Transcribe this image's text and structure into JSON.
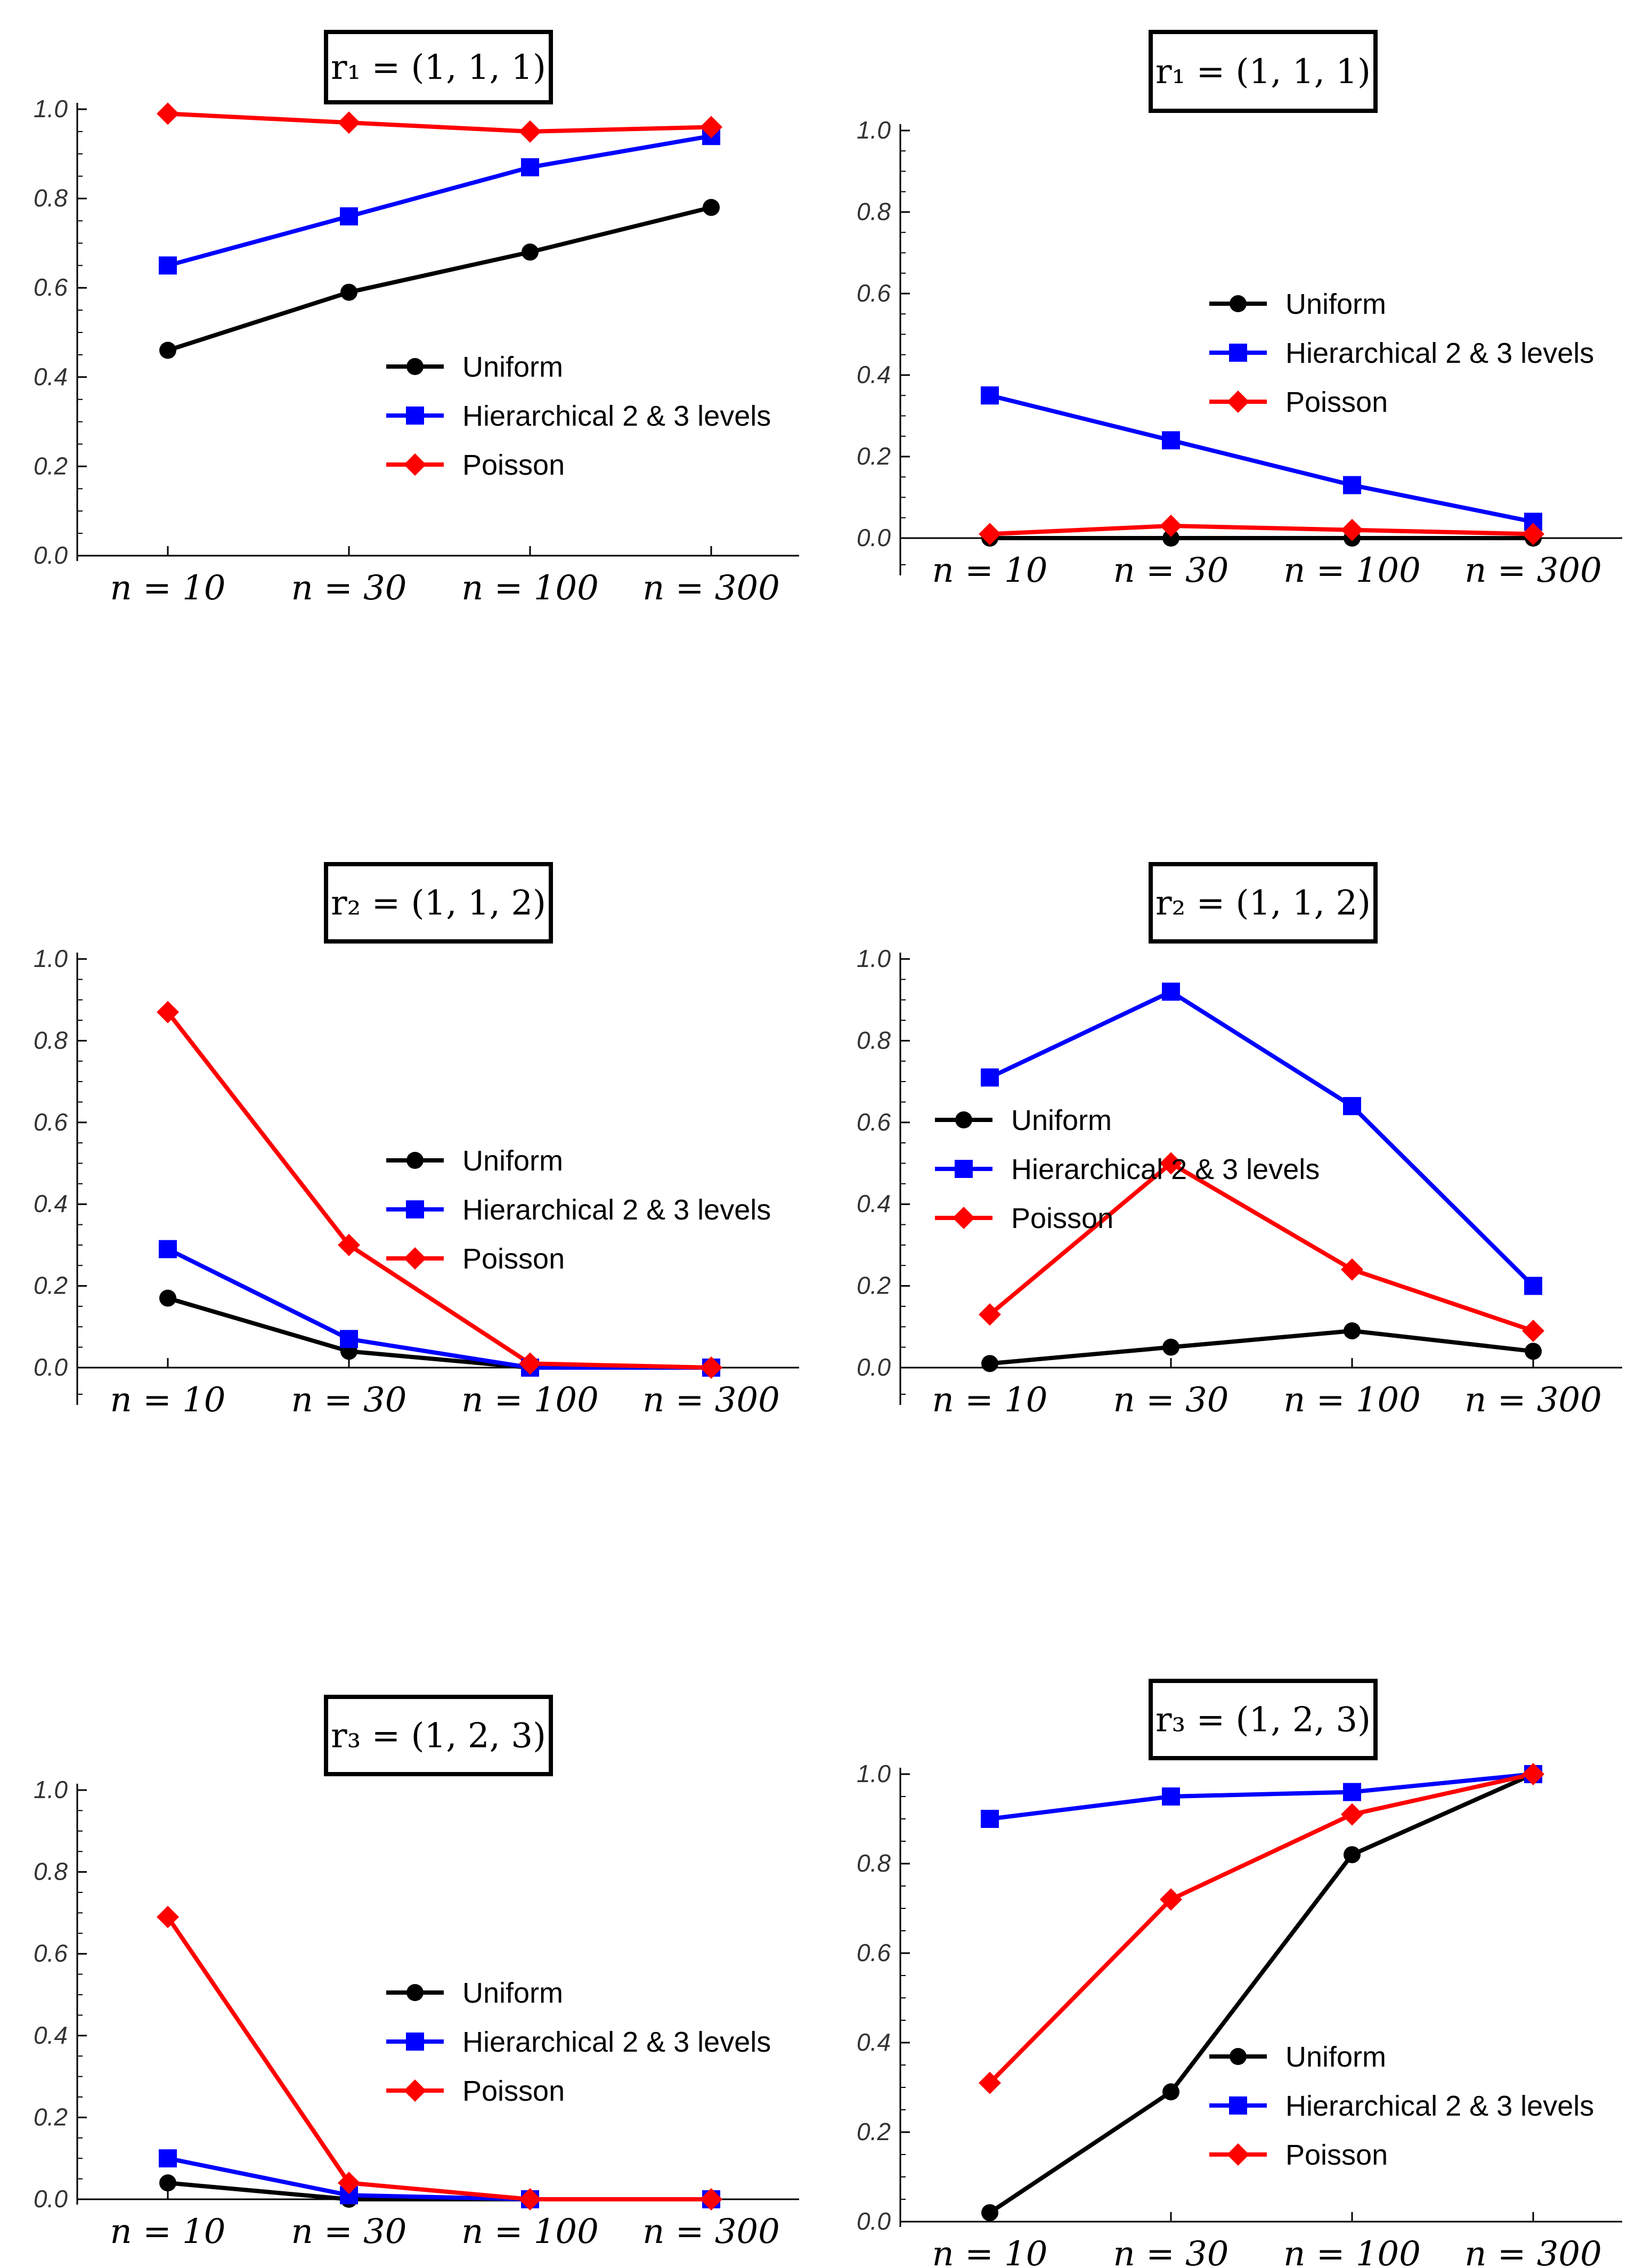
{
  "chart_data": [
    {
      "type": "line",
      "title": "r₁ = (1, 1, 1)",
      "categories": [
        "n = 10",
        "n = 30",
        "n = 100",
        "n = 300"
      ],
      "ylim": [
        0,
        1
      ],
      "yticks": [
        "0.0",
        "0.2",
        "0.4",
        "0.6",
        "0.8",
        "1.0"
      ],
      "legend_position": "center-right",
      "series": [
        {
          "name": "Uniform",
          "color": "#000000",
          "marker": "circle",
          "values": [
            0.46,
            0.59,
            0.68,
            0.78
          ]
        },
        {
          "name": "Hierarchical 2 & 3 levels",
          "color": "#0000ff",
          "marker": "square",
          "values": [
            0.65,
            0.76,
            0.87,
            0.94
          ]
        },
        {
          "name": "Poisson",
          "color": "#ff0000",
          "marker": "diamond",
          "values": [
            0.99,
            0.97,
            0.95,
            0.96
          ]
        }
      ]
    },
    {
      "type": "line",
      "title": "r₁ = (1, 1, 1)",
      "categories": [
        "n = 10",
        "n = 30",
        "n = 100",
        "n = 300"
      ],
      "ylim": [
        0,
        1
      ],
      "yticks": [
        "0.0",
        "0.2",
        "0.4",
        "0.6",
        "0.8",
        "1.0"
      ],
      "legend_position": "center-right",
      "series": [
        {
          "name": "Uniform",
          "color": "#000000",
          "marker": "circle",
          "values": [
            0.0,
            0.0,
            0.0,
            0.0
          ]
        },
        {
          "name": "Hierarchical 2 & 3 levels",
          "color": "#0000ff",
          "marker": "square",
          "values": [
            0.35,
            0.24,
            0.13,
            0.04
          ]
        },
        {
          "name": "Poisson",
          "color": "#ff0000",
          "marker": "diamond",
          "values": [
            0.01,
            0.03,
            0.02,
            0.01
          ]
        }
      ]
    },
    {
      "type": "line",
      "title": "r₂ = (1, 1, 2)",
      "categories": [
        "n = 10",
        "n = 30",
        "n = 100",
        "n = 300"
      ],
      "ylim": [
        0,
        1
      ],
      "yticks": [
        "0.0",
        "0.2",
        "0.4",
        "0.6",
        "0.8",
        "1.0"
      ],
      "legend_position": "center-right",
      "series": [
        {
          "name": "Uniform",
          "color": "#000000",
          "marker": "circle",
          "values": [
            0.17,
            0.04,
            0.0,
            0.0
          ]
        },
        {
          "name": "Hierarchical 2 & 3 levels",
          "color": "#0000ff",
          "marker": "square",
          "values": [
            0.29,
            0.07,
            0.0,
            0.0
          ]
        },
        {
          "name": "Poisson",
          "color": "#ff0000",
          "marker": "diamond",
          "values": [
            0.87,
            0.3,
            0.01,
            0.0
          ]
        }
      ]
    },
    {
      "type": "line",
      "title": "r₂ = (1, 1, 2)",
      "categories": [
        "n = 10",
        "n = 30",
        "n = 100",
        "n = 300"
      ],
      "ylim": [
        0,
        1
      ],
      "yticks": [
        "0.0",
        "0.2",
        "0.4",
        "0.6",
        "0.8",
        "1.0"
      ],
      "legend_position": "center-left",
      "series": [
        {
          "name": "Uniform",
          "color": "#000000",
          "marker": "circle",
          "values": [
            0.01,
            0.05,
            0.09,
            0.04
          ]
        },
        {
          "name": "Hierarchical 2 & 3 levels",
          "color": "#0000ff",
          "marker": "square",
          "values": [
            0.71,
            0.92,
            0.64,
            0.2
          ]
        },
        {
          "name": "Poisson",
          "color": "#ff0000",
          "marker": "diamond",
          "values": [
            0.13,
            0.5,
            0.24,
            0.09
          ]
        }
      ]
    },
    {
      "type": "line",
      "title": "r₃ = (1, 2, 3)",
      "categories": [
        "n = 10",
        "n = 30",
        "n = 100",
        "n = 300"
      ],
      "ylim": [
        0,
        1
      ],
      "yticks": [
        "0.0",
        "0.2",
        "0.4",
        "0.6",
        "0.8",
        "1.0"
      ],
      "legend_position": "center-right",
      "series": [
        {
          "name": "Uniform",
          "color": "#000000",
          "marker": "circle",
          "values": [
            0.04,
            0.0,
            0.0,
            0.0
          ]
        },
        {
          "name": "Hierarchical 2 & 3 levels",
          "color": "#0000ff",
          "marker": "square",
          "values": [
            0.1,
            0.01,
            0.0,
            0.0
          ]
        },
        {
          "name": "Poisson",
          "color": "#ff0000",
          "marker": "diamond",
          "values": [
            0.69,
            0.04,
            0.0,
            0.0
          ]
        }
      ]
    },
    {
      "type": "line",
      "title": "r₃ = (1, 2, 3)",
      "categories": [
        "n = 10",
        "n = 30",
        "n = 100",
        "n = 300"
      ],
      "ylim": [
        0,
        1
      ],
      "yticks": [
        "0.0",
        "0.2",
        "0.4",
        "0.6",
        "0.8",
        "1.0"
      ],
      "legend_position": "bottom-right",
      "series": [
        {
          "name": "Uniform",
          "color": "#000000",
          "marker": "circle",
          "values": [
            0.02,
            0.29,
            0.82,
            1.0
          ]
        },
        {
          "name": "Hierarchical 2 & 3 levels",
          "color": "#0000ff",
          "marker": "square",
          "values": [
            0.9,
            0.95,
            0.96,
            1.0
          ]
        },
        {
          "name": "Poisson",
          "color": "#ff0000",
          "marker": "diamond",
          "values": [
            0.31,
            0.72,
            0.91,
            1.0
          ]
        }
      ]
    }
  ]
}
